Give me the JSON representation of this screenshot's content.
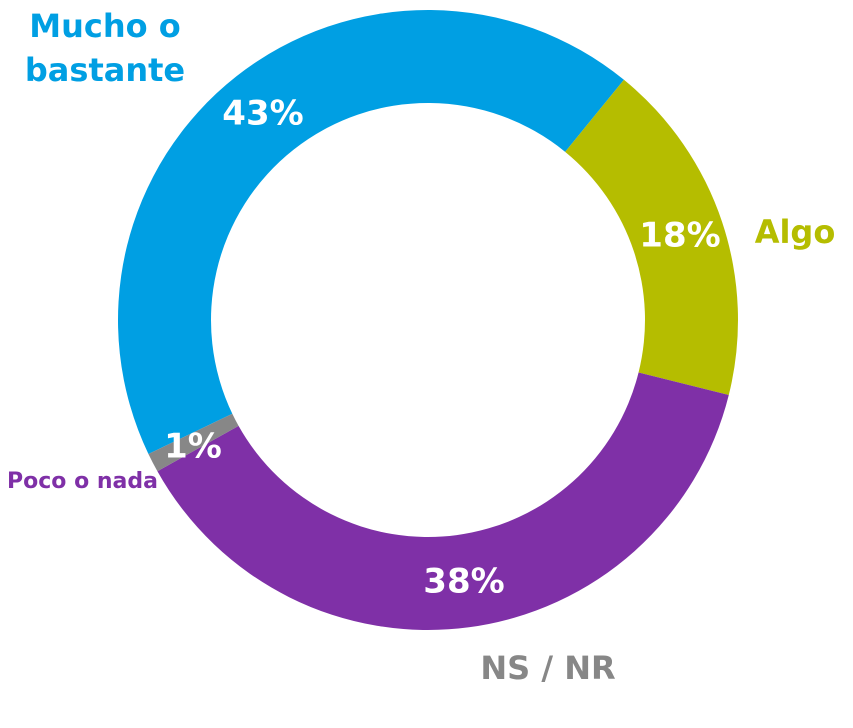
{
  "chart_data": {
    "type": "donut",
    "categories": [
      "Mucho o bastante",
      "Algo",
      "Poco o nada",
      "NS / NR"
    ],
    "values": [
      43,
      18,
      38,
      1
    ],
    "value_labels": [
      "43%",
      "18%",
      "38%",
      "1%"
    ],
    "colors": [
      "#009fe3",
      "#b5bd00",
      "#7f30a7",
      "#878787"
    ]
  }
}
